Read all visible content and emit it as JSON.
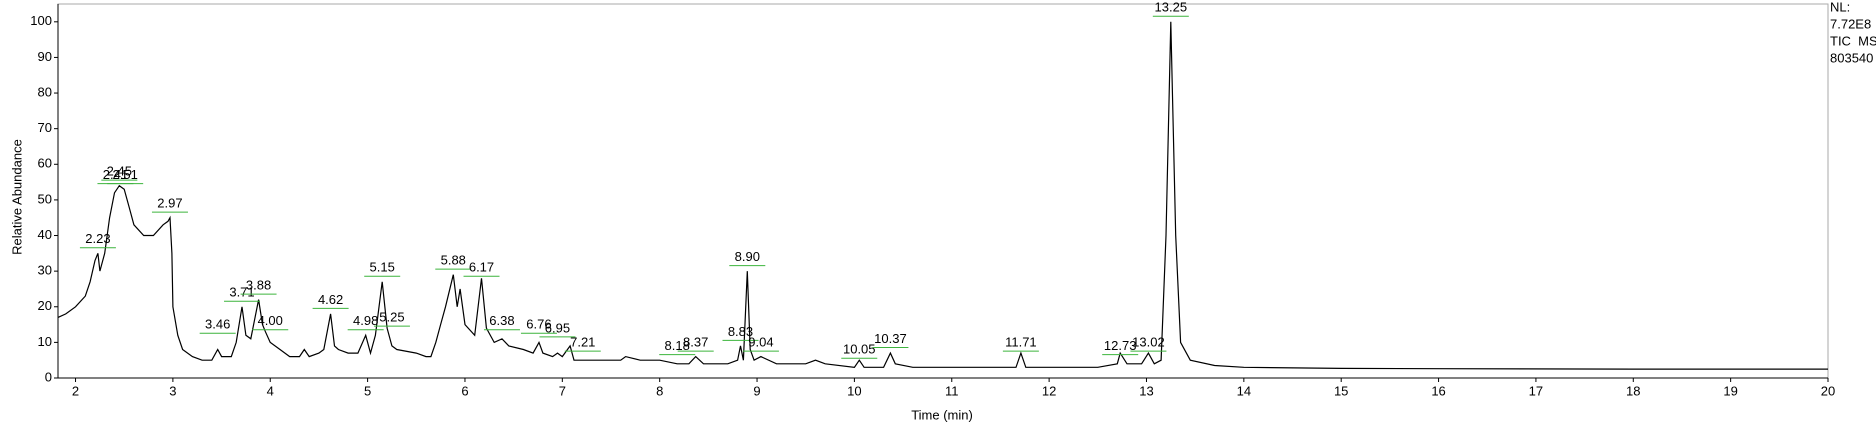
{
  "chart_data": {
    "type": "line",
    "x_label": "Time (min)",
    "y_label": "Relative Abundance",
    "side_text": [
      "NL:",
      "7.72E8",
      "TIC  MS",
      "803540"
    ],
    "xlim": [
      1.82,
      20
    ],
    "ylim": [
      0,
      105
    ],
    "xticks": [
      2,
      3,
      4,
      5,
      6,
      7,
      8,
      9,
      10,
      11,
      12,
      13,
      14,
      15,
      16,
      17,
      18,
      19,
      20
    ],
    "yticks": [
      0,
      10,
      20,
      30,
      40,
      50,
      60,
      70,
      80,
      90,
      100
    ],
    "color": "#000000",
    "label_line_color": "#3cb43c",
    "x": [
      1.82,
      1.9,
      2.0,
      2.1,
      2.15,
      2.2,
      2.23,
      2.25,
      2.3,
      2.35,
      2.4,
      2.45,
      2.5,
      2.55,
      2.6,
      2.7,
      2.8,
      2.9,
      2.95,
      2.97,
      2.99,
      3.0,
      3.05,
      3.1,
      3.2,
      3.3,
      3.4,
      3.46,
      3.5,
      3.6,
      3.65,
      3.71,
      3.75,
      3.8,
      3.88,
      3.92,
      3.95,
      4.0,
      4.1,
      4.2,
      4.3,
      4.35,
      4.4,
      4.5,
      4.55,
      4.62,
      4.66,
      4.7,
      4.8,
      4.9,
      4.98,
      5.03,
      5.08,
      5.15,
      5.2,
      5.25,
      5.3,
      5.5,
      5.6,
      5.65,
      5.7,
      5.75,
      5.8,
      5.88,
      5.92,
      5.95,
      6.0,
      6.1,
      6.17,
      6.22,
      6.3,
      6.38,
      6.45,
      6.6,
      6.7,
      6.76,
      6.8,
      6.9,
      6.95,
      7.0,
      7.08,
      7.12,
      7.21,
      7.4,
      7.6,
      7.65,
      7.8,
      8.0,
      8.18,
      8.3,
      8.37,
      8.45,
      8.7,
      8.8,
      8.83,
      8.86,
      8.9,
      8.93,
      8.97,
      9.04,
      9.2,
      9.5,
      9.6,
      9.7,
      10.0,
      10.05,
      10.1,
      10.3,
      10.37,
      10.42,
      10.6,
      11.0,
      11.5,
      11.66,
      11.71,
      11.76,
      12.0,
      12.5,
      12.7,
      12.73,
      12.8,
      12.95,
      13.02,
      13.08,
      13.15,
      13.2,
      13.25,
      13.3,
      13.35,
      13.45,
      13.7,
      14.0,
      15,
      16,
      18,
      20
    ],
    "values": [
      17,
      18,
      20,
      23,
      27,
      33,
      35,
      30,
      35,
      45,
      52,
      54,
      53,
      48,
      43,
      40,
      40,
      43,
      44,
      45,
      35,
      20,
      12,
      8,
      6,
      5,
      5,
      8,
      6,
      6,
      10,
      20,
      12,
      11,
      22,
      15,
      13,
      10,
      8,
      6,
      6,
      8,
      6,
      7,
      8,
      18,
      9,
      8,
      7,
      7,
      12,
      7,
      12,
      27,
      14,
      9,
      8,
      7,
      6,
      6,
      10,
      15,
      20,
      29,
      20,
      25,
      15,
      12,
      28,
      14,
      10,
      11,
      9,
      8,
      7,
      10,
      7,
      6,
      7,
      6,
      9,
      5,
      5,
      5,
      5,
      6,
      5,
      5,
      4,
      4,
      6,
      4,
      4,
      5,
      9,
      5,
      30,
      8,
      5,
      6,
      4,
      4,
      5,
      4,
      3,
      5,
      3,
      3,
      7,
      4,
      3,
      3,
      3,
      3,
      7,
      3,
      3,
      3,
      4,
      7,
      4,
      4,
      7,
      4,
      5,
      40,
      100,
      40,
      10,
      5,
      3.5,
      3,
      2.7,
      2.6,
      2.5,
      2.5
    ],
    "peaks": [
      {
        "x": 2.23,
        "y": 36,
        "label": "2.23"
      },
      {
        "x": 2.41,
        "y": 54,
        "label": "2.41"
      },
      {
        "x": 2.45,
        "y": 55,
        "label": "2.45"
      },
      {
        "x": 2.51,
        "y": 54,
        "label": "2.51"
      },
      {
        "x": 2.97,
        "y": 46,
        "label": "2.97"
      },
      {
        "x": 3.46,
        "y": 12,
        "label": "3.46"
      },
      {
        "x": 3.71,
        "y": 21,
        "label": "3.71"
      },
      {
        "x": 3.88,
        "y": 23,
        "label": "3.88"
      },
      {
        "x": 4.0,
        "y": 13,
        "label": "4.00"
      },
      {
        "x": 4.62,
        "y": 19,
        "label": "4.62"
      },
      {
        "x": 4.98,
        "y": 13,
        "label": "4.98"
      },
      {
        "x": 5.15,
        "y": 28,
        "label": "5.15"
      },
      {
        "x": 5.25,
        "y": 14,
        "label": "5.25"
      },
      {
        "x": 5.88,
        "y": 30,
        "label": "5.88"
      },
      {
        "x": 6.17,
        "y": 28,
        "label": "6.17"
      },
      {
        "x": 6.38,
        "y": 13,
        "label": "6.38"
      },
      {
        "x": 6.76,
        "y": 12,
        "label": "6.76"
      },
      {
        "x": 6.95,
        "y": 11,
        "label": "6.95"
      },
      {
        "x": 7.21,
        "y": 7,
        "label": "7.21"
      },
      {
        "x": 8.18,
        "y": 6,
        "label": "8.18"
      },
      {
        "x": 8.37,
        "y": 7,
        "label": "8.37"
      },
      {
        "x": 8.83,
        "y": 10,
        "label": "8.83"
      },
      {
        "x": 8.9,
        "y": 31,
        "label": "8.90"
      },
      {
        "x": 9.04,
        "y": 7,
        "label": "9.04"
      },
      {
        "x": 10.05,
        "y": 5,
        "label": "10.05"
      },
      {
        "x": 10.37,
        "y": 8,
        "label": "10.37"
      },
      {
        "x": 11.71,
        "y": 7,
        "label": "11.71"
      },
      {
        "x": 12.73,
        "y": 6,
        "label": "12.73"
      },
      {
        "x": 13.02,
        "y": 7,
        "label": "13.02"
      },
      {
        "x": 13.25,
        "y": 101,
        "label": "13.25"
      }
    ]
  }
}
